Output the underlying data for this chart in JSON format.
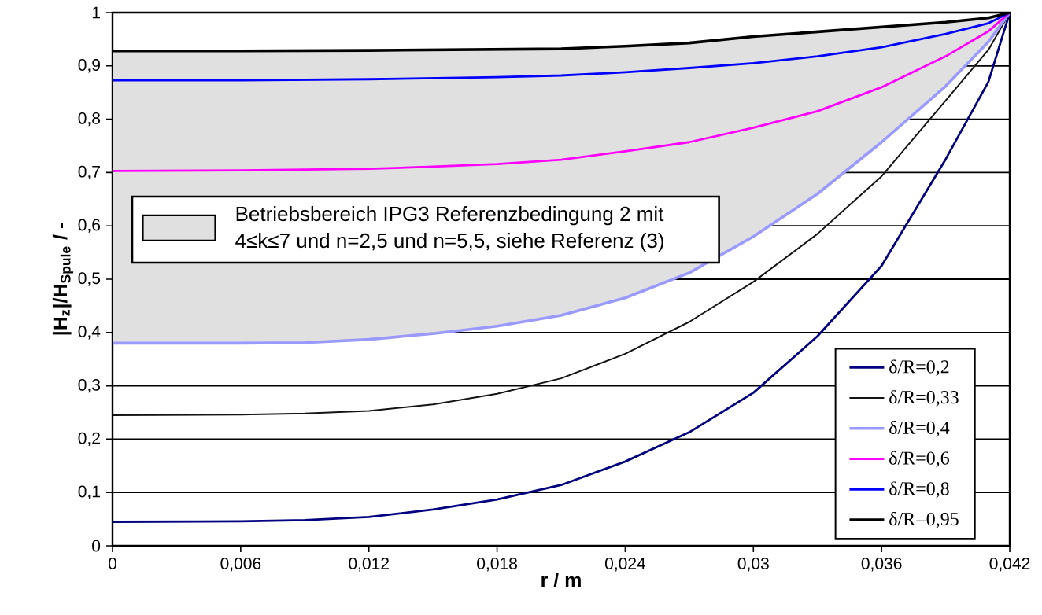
{
  "chart_data": {
    "type": "line",
    "xlabel": "r / m",
    "ylabel": "|H$_{z}$|/H$_{Spule}$ / -",
    "xlim": [
      0,
      0.042
    ],
    "ylim": [
      0,
      1
    ],
    "xticks": [
      0,
      {
        "value": 0.006,
        "label": "0,006"
      },
      {
        "value": 0.012,
        "label": "0,012"
      },
      {
        "value": 0.018,
        "label": "0,018"
      },
      {
        "value": 0.024,
        "label": "0,024"
      },
      {
        "value": 0.03,
        "label": "0,03"
      },
      {
        "value": 0.036,
        "label": "0,036"
      },
      {
        "value": 0.042,
        "label": "0,042"
      }
    ],
    "yticks": [
      0,
      {
        "value": 0.1,
        "label": "0,1"
      },
      {
        "value": 0.2,
        "label": "0,2"
      },
      {
        "value": 0.3,
        "label": "0,3"
      },
      {
        "value": 0.4,
        "label": "0,4"
      },
      {
        "value": 0.5,
        "label": "0,5"
      },
      {
        "value": 0.6,
        "label": "0,6"
      },
      {
        "value": 0.7,
        "label": "0,7"
      },
      {
        "value": 0.8,
        "label": "0,8"
      },
      {
        "value": 0.9,
        "label": "0,9"
      },
      1
    ],
    "grid": "y",
    "legend": "bottom right",
    "annotations": [
      "Betriebsbereich IPG3 Referenzbedingung 2 mit 4≤k≤7 und n=2,5 und n=5,5, siehe Referenz (3)"
    ],
    "series": [
      {
        "name": "δ/R=0,2",
        "color": "#000080",
        "x": [
          0,
          0.006,
          0.009,
          0.012,
          0.015,
          0.018,
          0.021,
          0.024,
          0.027,
          0.03,
          0.033,
          0.036,
          0.039,
          0.041,
          0.042
        ],
        "values": [
          0.045,
          0.046,
          0.048,
          0.054,
          0.068,
          0.087,
          0.114,
          0.158,
          0.213,
          0.287,
          0.393,
          0.525,
          0.725,
          0.87,
          1.0
        ]
      },
      {
        "name": "δ/R=0,33",
        "color": "#141414",
        "x": [
          0,
          0.006,
          0.009,
          0.012,
          0.015,
          0.018,
          0.021,
          0.024,
          0.027,
          0.03,
          0.033,
          0.036,
          0.039,
          0.041,
          0.042
        ],
        "values": [
          0.245,
          0.246,
          0.248,
          0.253,
          0.265,
          0.285,
          0.314,
          0.36,
          0.42,
          0.495,
          0.585,
          0.693,
          0.835,
          0.93,
          1.0
        ]
      },
      {
        "name": "δ/R=0,4",
        "color": "#9999ff",
        "x": [
          0,
          0.006,
          0.009,
          0.012,
          0.015,
          0.018,
          0.021,
          0.024,
          0.027,
          0.03,
          0.033,
          0.036,
          0.039,
          0.041,
          0.042
        ],
        "values": [
          0.38,
          0.38,
          0.381,
          0.387,
          0.398,
          0.412,
          0.432,
          0.465,
          0.512,
          0.58,
          0.66,
          0.757,
          0.862,
          0.945,
          1.0
        ],
        "lower": [
          0.38,
          0.38,
          0.381,
          0.387,
          0.398,
          0.412,
          0.432,
          0.465,
          0.512,
          0.58,
          0.66,
          0.757,
          0.862,
          0.945,
          1.0
        ],
        "upper": [
          0.928,
          0.928,
          0.928,
          0.929,
          0.93,
          0.931,
          0.932,
          0.937,
          0.943,
          0.955,
          0.964,
          0.973,
          0.982,
          0.99,
          1.0
        ]
      },
      {
        "name": "δ/R=0,6",
        "color": "#ff00ff",
        "x": [
          0,
          0.006,
          0.012,
          0.015,
          0.018,
          0.021,
          0.024,
          0.027,
          0.03,
          0.033,
          0.036,
          0.039,
          0.041,
          0.042
        ],
        "values": [
          0.703,
          0.704,
          0.707,
          0.711,
          0.716,
          0.724,
          0.74,
          0.757,
          0.784,
          0.815,
          0.86,
          0.918,
          0.965,
          1.0
        ]
      },
      {
        "name": "δ/R=0,8",
        "color": "#0000ff",
        "x": [
          0,
          0.006,
          0.012,
          0.018,
          0.021,
          0.024,
          0.027,
          0.03,
          0.033,
          0.036,
          0.039,
          0.041,
          0.042
        ],
        "values": [
          0.873,
          0.873,
          0.875,
          0.879,
          0.882,
          0.888,
          0.896,
          0.905,
          0.918,
          0.935,
          0.96,
          0.98,
          1.0
        ]
      },
      {
        "name": "δ/R=0,95",
        "color": "#000000",
        "x": [
          0,
          0.006,
          0.012,
          0.018,
          0.021,
          0.024,
          0.027,
          0.03,
          0.033,
          0.036,
          0.039,
          0.041,
          0.042
        ],
        "values": [
          0.928,
          0.928,
          0.929,
          0.931,
          0.932,
          0.937,
          0.943,
          0.955,
          0.964,
          0.973,
          0.982,
          0.99,
          1.0
        ]
      }
    ]
  }
}
